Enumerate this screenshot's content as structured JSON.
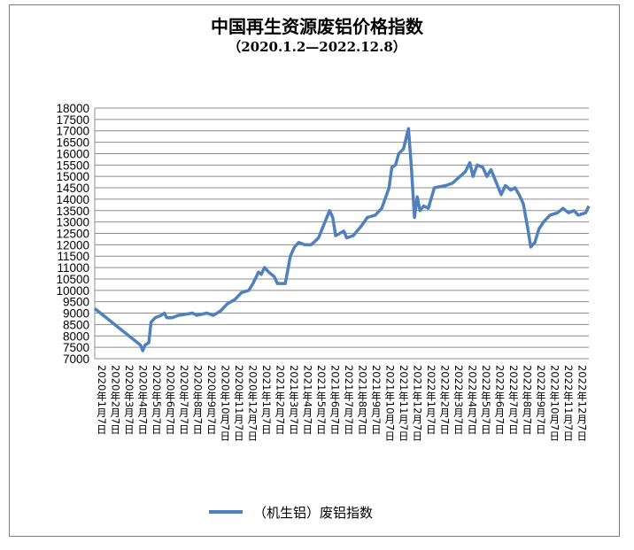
{
  "chart_data": {
    "type": "line",
    "title": "中国再生资源废铝价格指数",
    "subtitle": "（2020.1.2—2022.12.8）",
    "x_range": [
      "2020-01-02",
      "2022-12-08"
    ],
    "ylim": [
      7000,
      18000
    ],
    "ytick_step": 500,
    "ytick_labels": [
      "7000",
      "7500",
      "8000",
      "8500",
      "9000",
      "9500",
      "10000",
      "10500",
      "11000",
      "11500",
      "12000",
      "12500",
      "13000",
      "13500",
      "14000",
      "14500",
      "15000",
      "15500",
      "16000",
      "16500",
      "17000",
      "17500",
      "18000"
    ],
    "grid": true,
    "legend_position": "bottom",
    "categories": [
      "2020年1月7日",
      "2020年2月7日",
      "2020年3月7日",
      "2020年4月7日",
      "2020年5月7日",
      "2020年6月7日",
      "2020年7月7日",
      "2020年8月7日",
      "2020年9月7日",
      "2020年10月7日",
      "2020年11月7日",
      "2020年12月7日",
      "2021年1月7日",
      "2021年2月7日",
      "2021年3月7日",
      "2021年4月7日",
      "2021年5月7日",
      "2021年6月7日",
      "2021年7月7日",
      "2021年8月7日",
      "2021年9月7日",
      "2021年10月7日",
      "2021年11月7日",
      "2021年12月7日",
      "2022年1月7日",
      "2022年2月7日",
      "2022年3月7日",
      "2022年4月7日",
      "2022年5月7日",
      "2022年6月7日",
      "2022年7月7日",
      "2022年8月7日",
      "2022年9月7日",
      "2022年10月7日",
      "2022年11月7日",
      "2022年12月7日"
    ],
    "series": [
      {
        "name": "（机生铝）废铝指数",
        "color": "#4f81bd",
        "points": [
          [
            "2020-01-02",
            9200
          ],
          [
            "2020-04-10",
            7600
          ],
          [
            "2020-04-15",
            7350
          ],
          [
            "2020-04-20",
            7600
          ],
          [
            "2020-04-28",
            7700
          ],
          [
            "2020-05-03",
            8600
          ],
          [
            "2020-05-12",
            8800
          ],
          [
            "2020-05-25",
            8900
          ],
          [
            "2020-06-01",
            9000
          ],
          [
            "2020-06-06",
            8800
          ],
          [
            "2020-06-18",
            8800
          ],
          [
            "2020-07-01",
            8900
          ],
          [
            "2020-08-01",
            9000
          ],
          [
            "2020-08-10",
            8900
          ],
          [
            "2020-09-01",
            9000
          ],
          [
            "2020-09-15",
            8900
          ],
          [
            "2020-10-01",
            9100
          ],
          [
            "2020-10-15",
            9400
          ],
          [
            "2020-11-01",
            9600
          ],
          [
            "2020-11-15",
            9900
          ],
          [
            "2020-12-01",
            10000
          ],
          [
            "2020-12-10",
            10300
          ],
          [
            "2020-12-22",
            10800
          ],
          [
            "2020-12-28",
            10700
          ],
          [
            "2021-01-04",
            11000
          ],
          [
            "2021-01-13",
            10800
          ],
          [
            "2021-01-25",
            10600
          ],
          [
            "2021-02-01",
            10300
          ],
          [
            "2021-02-18",
            10300
          ],
          [
            "2021-03-01",
            11500
          ],
          [
            "2021-03-10",
            11900
          ],
          [
            "2021-03-19",
            12100
          ],
          [
            "2021-04-01",
            12000
          ],
          [
            "2021-04-15",
            12000
          ],
          [
            "2021-05-01",
            12300
          ],
          [
            "2021-05-25",
            13500
          ],
          [
            "2021-06-01",
            13200
          ],
          [
            "2021-06-07",
            12400
          ],
          [
            "2021-06-16",
            12500
          ],
          [
            "2021-06-25",
            12600
          ],
          [
            "2021-07-01",
            12300
          ],
          [
            "2021-07-15",
            12400
          ],
          [
            "2021-08-01",
            12800
          ],
          [
            "2021-08-15",
            13200
          ],
          [
            "2021-09-01",
            13300
          ],
          [
            "2021-09-15",
            13600
          ],
          [
            "2021-10-01",
            14500
          ],
          [
            "2021-10-07",
            15400
          ],
          [
            "2021-10-15",
            15500
          ],
          [
            "2021-10-22",
            16000
          ],
          [
            "2021-11-01",
            16200
          ],
          [
            "2021-11-12",
            17100
          ],
          [
            "2021-11-18",
            15500
          ],
          [
            "2021-11-25",
            13200
          ],
          [
            "2021-12-01",
            14100
          ],
          [
            "2021-12-07",
            13500
          ],
          [
            "2021-12-15",
            13700
          ],
          [
            "2021-12-25",
            13600
          ],
          [
            "2022-01-07",
            14500
          ],
          [
            "2022-02-01",
            14600
          ],
          [
            "2022-02-15",
            14700
          ],
          [
            "2022-03-15",
            15200
          ],
          [
            "2022-03-25",
            15600
          ],
          [
            "2022-04-01",
            15000
          ],
          [
            "2022-04-10",
            15500
          ],
          [
            "2022-04-22",
            15400
          ],
          [
            "2022-05-01",
            15000
          ],
          [
            "2022-05-10",
            15300
          ],
          [
            "2022-05-22",
            14700
          ],
          [
            "2022-06-01",
            14200
          ],
          [
            "2022-06-10",
            14600
          ],
          [
            "2022-06-22",
            14400
          ],
          [
            "2022-07-01",
            14500
          ],
          [
            "2022-07-10",
            14200
          ],
          [
            "2022-07-19",
            13800
          ],
          [
            "2022-07-28",
            12800
          ],
          [
            "2022-08-04",
            11900
          ],
          [
            "2022-08-13",
            12100
          ],
          [
            "2022-08-22",
            12700
          ],
          [
            "2022-09-01",
            13000
          ],
          [
            "2022-09-15",
            13300
          ],
          [
            "2022-10-01",
            13400
          ],
          [
            "2022-10-13",
            13600
          ],
          [
            "2022-10-25",
            13400
          ],
          [
            "2022-11-06",
            13500
          ],
          [
            "2022-11-15",
            13300
          ],
          [
            "2022-12-01",
            13400
          ],
          [
            "2022-12-08",
            13700
          ]
        ]
      }
    ]
  }
}
